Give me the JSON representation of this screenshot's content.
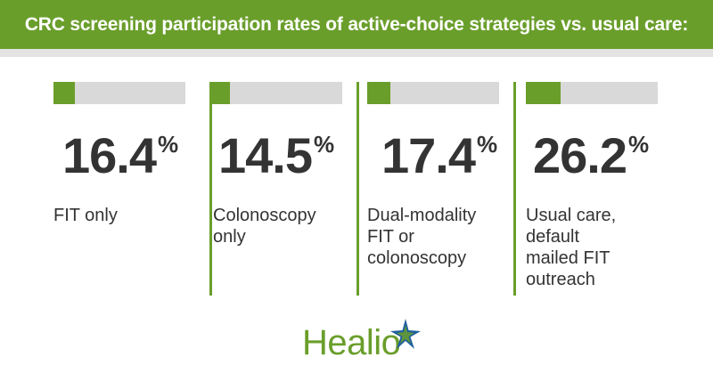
{
  "colors": {
    "accent": "#6a9e2b",
    "track": "#d9d9d9",
    "text": "#333333",
    "band": "#e3e3e3",
    "star_blue": "#1f5f9e"
  },
  "header": {
    "title": "CRC screening participation rates of active-choice strategies vs. usual care:"
  },
  "chart_data": {
    "type": "bar",
    "title": "CRC screening participation rates of active-choice strategies vs. usual care:",
    "categories": [
      "FIT only",
      "Colonoscopy only",
      "Dual-modality FIT or colonoscopy",
      "Usual care, default mailed FIT outreach"
    ],
    "values": [
      16.4,
      14.5,
      17.4,
      26.2
    ],
    "unit": "%",
    "ylim": [
      0,
      100
    ],
    "items": [
      {
        "value_text": "16.4",
        "pct": "%",
        "label_lines": [
          "FIT only"
        ]
      },
      {
        "value_text": "14.5",
        "pct": "%",
        "label_lines": [
          "Colonoscopy",
          "only"
        ]
      },
      {
        "value_text": "17.4",
        "pct": "%",
        "label_lines": [
          "Dual-modality",
          "FIT or",
          "colonoscopy"
        ]
      },
      {
        "value_text": "26.2",
        "pct": "%",
        "label_lines": [
          "Usual care,",
          "default",
          "mailed FIT",
          "outreach"
        ]
      }
    ]
  },
  "logo": {
    "text": "Healio",
    "icon": "star-icon"
  }
}
